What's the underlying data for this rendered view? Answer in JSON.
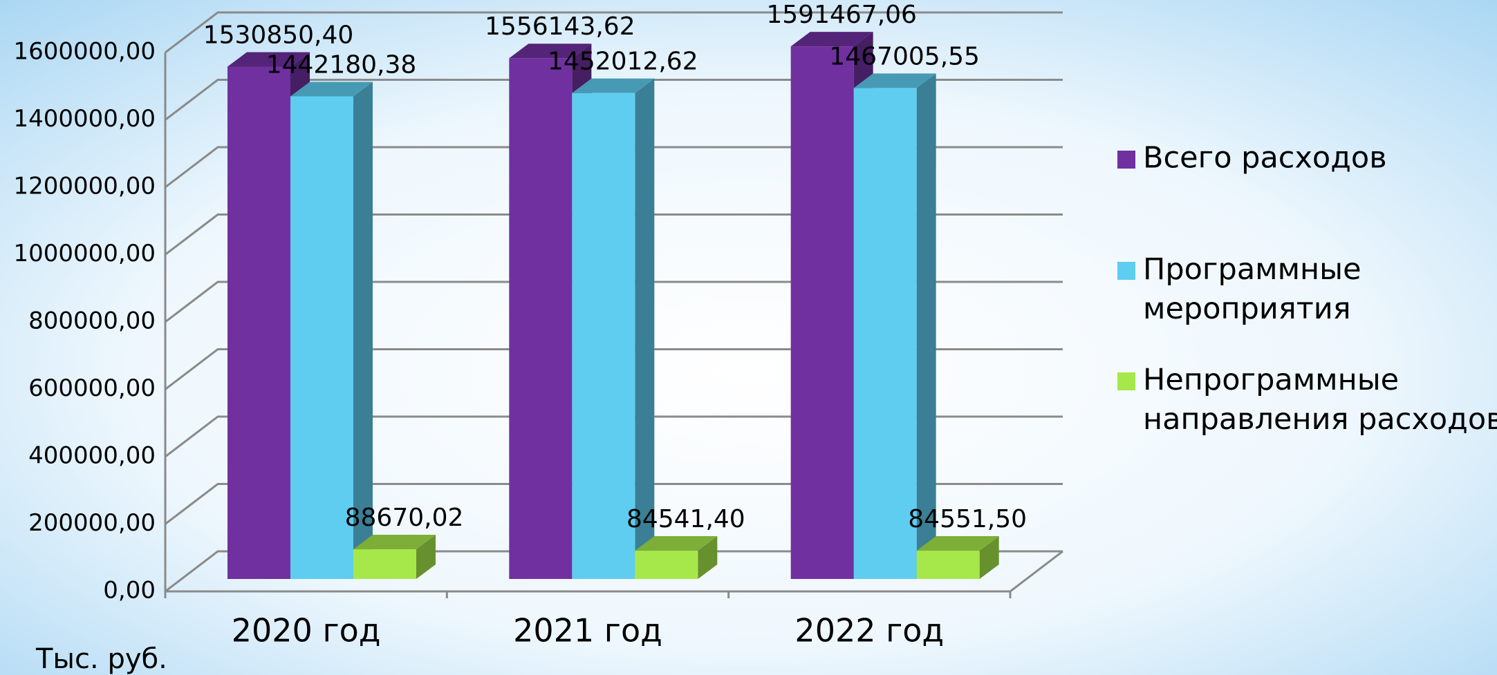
{
  "chart_data": {
    "type": "bar3d",
    "categories": [
      "2020 год",
      "2021 год",
      "2022 год"
    ],
    "series": [
      {
        "name": "Всего расходов",
        "color": "#7030a0",
        "values": [
          1530850.4,
          1556143.62,
          1591467.06
        ],
        "value_labels": [
          "1530850,40",
          "1556143,62",
          "1591467,06"
        ]
      },
      {
        "name": "Программные мероприятия",
        "color": "#5ecdf0",
        "values": [
          1442180.38,
          1452012.62,
          1467005.55
        ],
        "value_labels": [
          "1442180,38",
          "1452012,62",
          "1467005,55"
        ]
      },
      {
        "name": "Непрограммные направления расходов",
        "color": "#a6e84a",
        "values": [
          88670.02,
          84541.4,
          84551.5
        ],
        "value_labels": [
          "88670,02",
          "84541,40",
          "84551,50"
        ]
      }
    ],
    "ylim": [
      0,
      1600000
    ],
    "yticks": [
      {
        "value": 0,
        "label": "0,00"
      },
      {
        "value": 200000,
        "label": "200000,00"
      },
      {
        "value": 400000,
        "label": "400000,00"
      },
      {
        "value": 600000,
        "label": "600000,00"
      },
      {
        "value": 800000,
        "label": "800000,00"
      },
      {
        "value": 1000000,
        "label": "1000000,00"
      },
      {
        "value": 1200000,
        "label": "1200000,00"
      },
      {
        "value": 1400000,
        "label": "1400000,00"
      },
      {
        "value": 1600000,
        "label": "1600000,00"
      }
    ],
    "y_unit_label": "Тыс. руб.",
    "grid": true,
    "legend": "right"
  }
}
